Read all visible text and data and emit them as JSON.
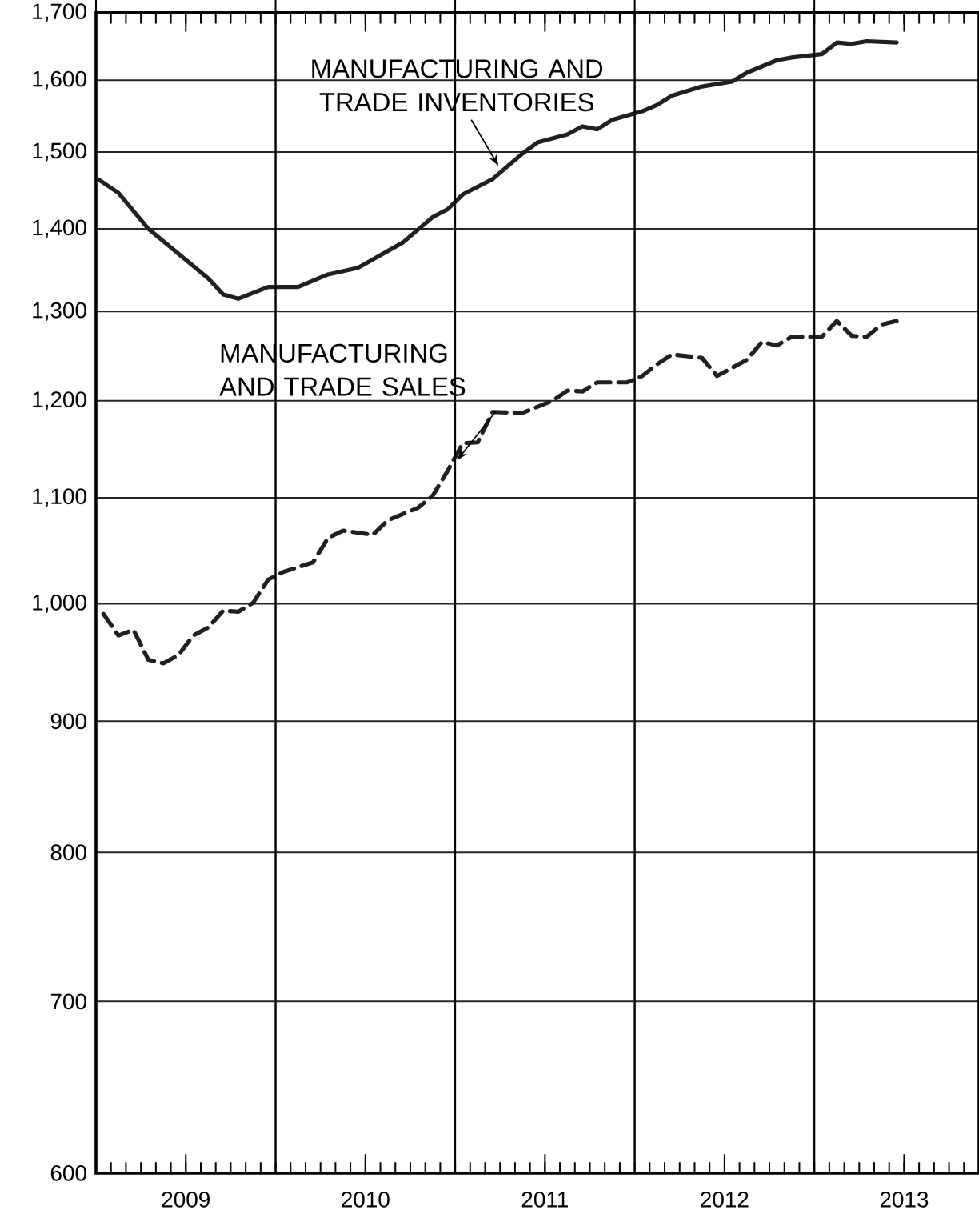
{
  "chart_data": {
    "type": "line",
    "xlim": [
      "2009-01-01",
      "2013-12-01"
    ],
    "xticks": [
      {
        "value": "2009-01-01",
        "label": null
      },
      {
        "value": "2009-07-01",
        "label": "2009"
      },
      {
        "value": "2010-01-01",
        "label": null
      },
      {
        "value": "2010-07-01",
        "label": "2010"
      },
      {
        "value": "2011-01-01",
        "label": null
      },
      {
        "value": "2011-07-01",
        "label": "2011"
      },
      {
        "value": "2012-01-01",
        "label": null
      },
      {
        "value": "2012-07-01",
        "label": "2012"
      },
      {
        "value": "2013-01-01",
        "label": null
      },
      {
        "value": "2013-07-01",
        "label": "2013"
      }
    ],
    "ylim": [
      600,
      1700
    ],
    "yticks": [
      600,
      700,
      800,
      900,
      {
        "value": 1000,
        "label": "1,000"
      },
      {
        "value": 1100,
        "label": "1,100"
      },
      {
        "value": 1200,
        "label": "1,200"
      },
      {
        "value": 1300,
        "label": "1,300"
      },
      {
        "value": 1400,
        "label": "1,400"
      },
      {
        "value": 1500,
        "label": "1,500"
      },
      {
        "value": 1600,
        "label": "1,600"
      },
      {
        "value": 1700,
        "label": "1,700"
      }
    ],
    "log": "y",
    "grid": true,
    "series": [
      {
        "color": "#231f20",
        "line_style": "solid",
        "x": [
          "2009-01-05",
          "2009-02-16",
          "2009-04-16",
          "2009-08-16",
          "2009-09-16",
          "2009-10-16",
          "2009-12-16",
          "2010-02-16",
          "2010-04-16",
          "2010-06-16",
          "2010-09-16",
          "2010-11-16",
          "2010-12-16",
          "2011-01-16",
          "2011-03-16",
          "2011-04-16",
          "2011-05-16",
          "2011-06-16",
          "2011-08-16",
          "2011-09-16",
          "2011-10-16",
          "2011-11-16",
          "2012-01-16",
          "2012-02-16",
          "2012-03-16",
          "2012-05-16",
          "2012-07-16",
          "2012-08-16",
          "2012-10-16",
          "2012-11-16",
          "2013-01-16",
          "2013-02-16",
          "2013-03-16",
          "2013-04-16",
          "2013-06-16"
        ],
        "values": [
          1464,
          1446,
          1400,
          1339,
          1320,
          1315,
          1329,
          1329,
          1344,
          1352,
          1383,
          1415,
          1425,
          1444,
          1464,
          1481,
          1498,
          1513,
          1524,
          1535,
          1531,
          1544,
          1556,
          1565,
          1578,
          1591,
          1598,
          1611,
          1629,
          1633,
          1638,
          1655,
          1653,
          1657,
          1655
        ]
      },
      {
        "color": "#231f20",
        "line_style": "dashed",
        "x": [
          "2009-01-16",
          "2009-02-16",
          "2009-03-16",
          "2009-04-16",
          "2009-05-16",
          "2009-06-16",
          "2009-07-16",
          "2009-08-16",
          "2009-09-16",
          "2009-10-16",
          "2009-11-16",
          "2009-12-16",
          "2010-01-16",
          "2010-03-16",
          "2010-04-16",
          "2010-05-16",
          "2010-07-16",
          "2010-08-16",
          "2010-10-16",
          "2010-11-16",
          "2010-12-16",
          "2011-01-16",
          "2011-02-16",
          "2011-03-16",
          "2011-05-16",
          "2011-07-16",
          "2011-08-16",
          "2011-09-16",
          "2011-10-16",
          "2011-12-16",
          "2012-01-16",
          "2012-02-16",
          "2012-03-16",
          "2012-05-16",
          "2012-06-16",
          "2012-08-16",
          "2012-09-16",
          "2012-10-16",
          "2012-11-16",
          "2013-01-16",
          "2013-02-16",
          "2013-03-16",
          "2013-04-16",
          "2013-05-16",
          "2013-06-16"
        ],
        "values": [
          991,
          972,
          977,
          951,
          948,
          955,
          972,
          979,
          994,
          993,
          1001,
          1022,
          1029,
          1038,
          1061,
          1068,
          1064,
          1078,
          1090,
          1102,
          1127,
          1155,
          1156,
          1188,
          1187,
          1200,
          1211,
          1210,
          1220,
          1220,
          1227,
          1240,
          1251,
          1247,
          1227,
          1245,
          1265,
          1261,
          1271,
          1271,
          1289,
          1272,
          1271,
          1285,
          1289
        ]
      }
    ],
    "annotations": [
      {
        "text": "MANUFACTURING AND TRADE INVENTORIES",
        "x": "2011-04-01",
        "y": 1478
      },
      {
        "text": "MANUFACTURING AND TRADE SALES",
        "x": "2011-01-01",
        "y": 1135
      }
    ]
  }
}
